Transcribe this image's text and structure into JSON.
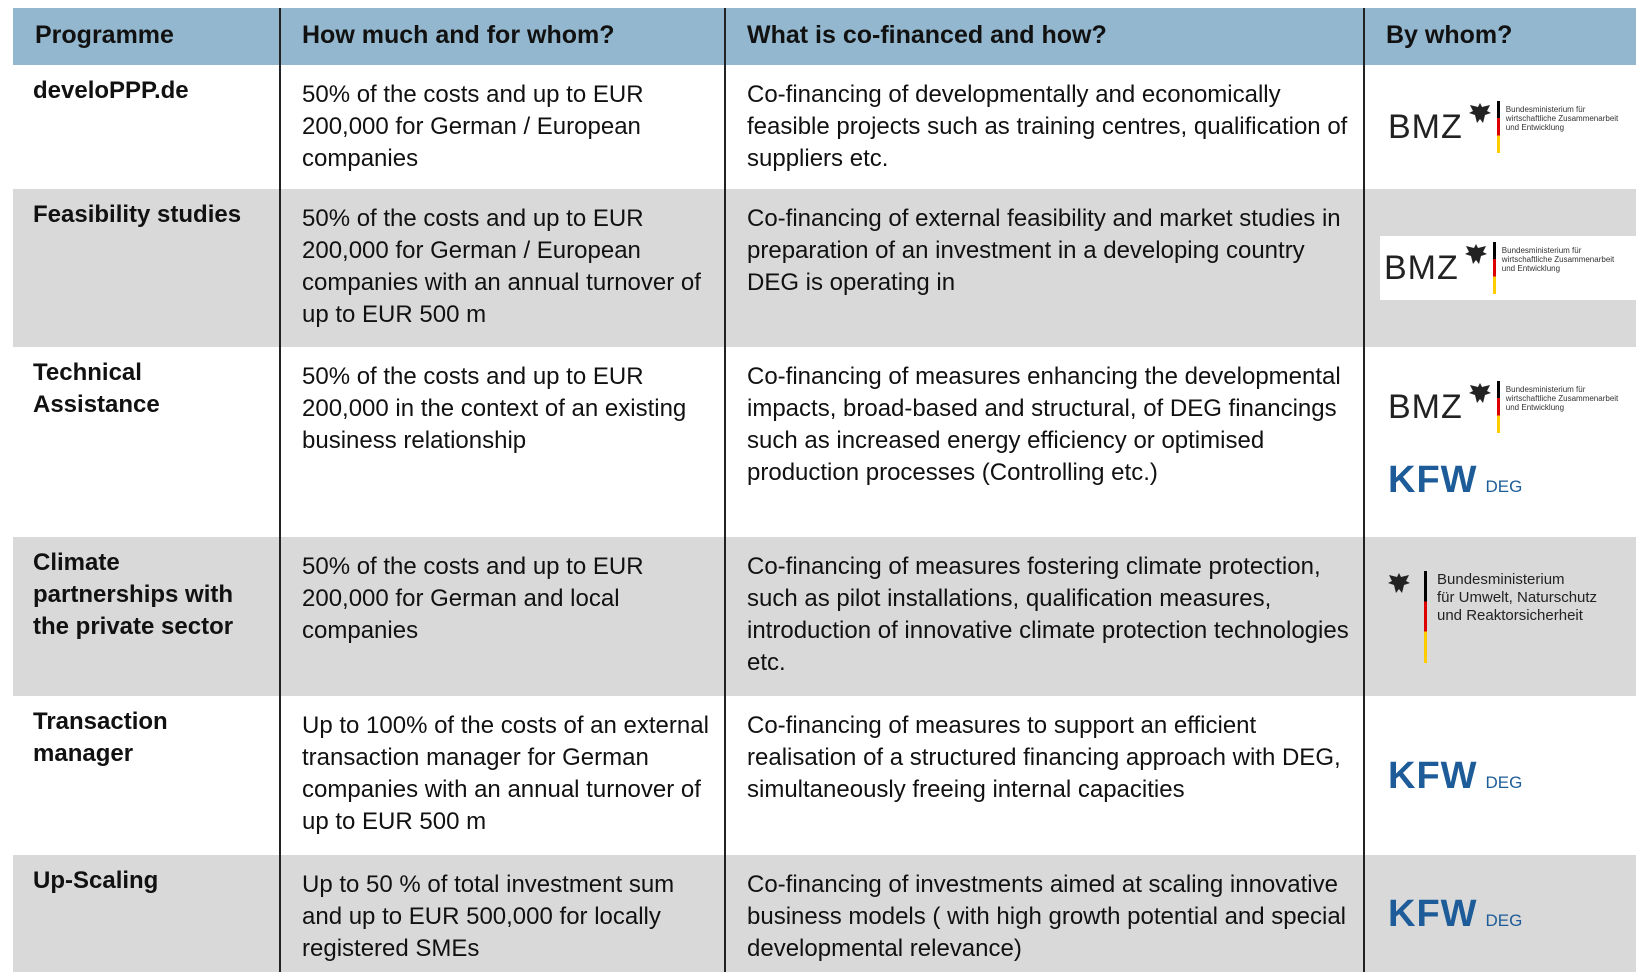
{
  "table": {
    "header": [
      "Programme",
      "How much and for whom?",
      "What is co-financed and how?",
      "By whom?"
    ],
    "rows": [
      {
        "programme": "develoPPP.de",
        "amount": "50% of the costs and up to EUR 200,000 for German / European companies",
        "what": "Co-financing of developmentally and economically feasible projects such as training centres, qualification of suppliers etc.",
        "by": [
          {
            "abbr": "BMZ",
            "ministry": [
              "Bundesministerium für",
              "wirtschaftliche Zusammenarbeit",
              "und Entwicklung"
            ]
          }
        ]
      },
      {
        "programme": "Feasibility studies",
        "amount": "50% of the costs and up to EUR 200,000 for German / European companies with an annual turnover of up to EUR 500 m",
        "what": "Co-financing of external feasibility and market studies in preparation of an investment in a developing country DEG is operating in",
        "by": [
          {
            "abbr": "BMZ",
            "ministry": [
              "Bundesministerium für",
              "wirtschaftliche Zusammenarbeit",
              "und Entwicklung"
            ]
          }
        ]
      },
      {
        "programme": "Technical Assistance",
        "amount": "50% of the costs and up to EUR 200,000 in the context of an existing business relationship",
        "what": "Co-financing of measures enhancing the developmental impacts, broad-based and structural, of DEG financings such as increased energy efficiency or optimised production processes (Controlling etc.)",
        "by": [
          {
            "abbr": "BMZ",
            "ministry": [
              "Bundesministerium für",
              "wirtschaftliche Zusammenarbeit",
              "und Entwicklung"
            ]
          },
          {
            "mark": "KFW",
            "sub": "DEG"
          }
        ]
      },
      {
        "programme": "Climate partnerships with the private sector",
        "amount": "50% of the costs and up to EUR 200,000 for German and local companies",
        "what": "Co-financing of measures fostering climate protection, such as pilot installations, qualification measures, introduction of innovative climate protection technologies etc.",
        "by": [
          {
            "ministry": [
              "Bundesministerium",
              "für Umwelt, Naturschutz",
              "und Reaktorsicherheit"
            ]
          }
        ]
      },
      {
        "programme": "Transaction manager",
        "amount": "Up to 100% of the costs of an external transaction manager for German companies with an annual turnover of up to EUR 500 m",
        "what": "Co-financing of measures to support an efficient realisation of a structured financing approach with DEG, simultaneously freeing internal capacities",
        "by": [
          {
            "mark": "KFW",
            "sub": "DEG"
          }
        ]
      },
      {
        "programme": "Up-Scaling",
        "amount": "Up to 50 % of total investment sum and up to EUR 500,000 for locally registered SMEs",
        "what": "Co-financing of investments aimed at scaling innovative business models ( with high growth potential and special developmental relevance)",
        "by": [
          {
            "mark": "KFW",
            "sub": "DEG"
          }
        ]
      }
    ]
  }
}
